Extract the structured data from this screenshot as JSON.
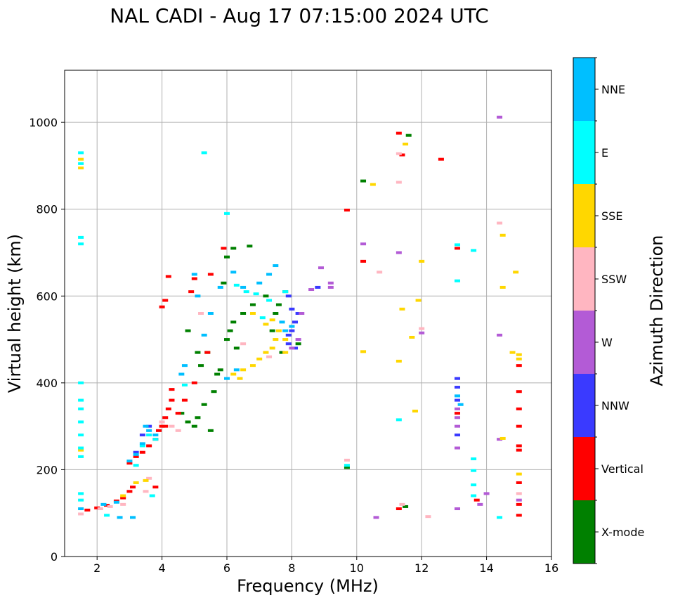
{
  "chart_data": {
    "type": "scatter",
    "title": "NAL CADI - Aug 17 07:15:00 2024 UTC",
    "xlabel": "Frequency (MHz)",
    "ylabel": "Virtual height (km)",
    "xlim": [
      1,
      16
    ],
    "ylim": [
      0,
      1120
    ],
    "x_ticks": [
      2,
      4,
      6,
      8,
      10,
      12,
      14,
      16
    ],
    "y_ticks": [
      0,
      200,
      400,
      600,
      800,
      1000
    ],
    "grid": true,
    "colorbar": {
      "label": "Azimuth Direction",
      "categories": [
        {
          "name": "X-mode",
          "color": "#008000"
        },
        {
          "name": "Vertical",
          "color": "#ff0000"
        },
        {
          "name": "NNW",
          "color": "#3a3aff"
        },
        {
          "name": "W",
          "color": "#b35bd6"
        },
        {
          "name": "SSW",
          "color": "#ffb6c1"
        },
        {
          "name": "SSE",
          "color": "#ffd700"
        },
        {
          "name": "E",
          "color": "#00ffff"
        },
        {
          "name": "NNE",
          "color": "#00bfff"
        }
      ]
    },
    "series": [
      {
        "name": "X-mode",
        "points": [
          [
            4.6,
            330
          ],
          [
            4.8,
            310
          ],
          [
            5.0,
            300
          ],
          [
            5.1,
            320
          ],
          [
            5.3,
            350
          ],
          [
            5.5,
            290
          ],
          [
            5.6,
            380
          ],
          [
            5.2,
            440
          ],
          [
            5.4,
            470
          ],
          [
            5.7,
            420
          ],
          [
            5.8,
            430
          ],
          [
            6.0,
            500
          ],
          [
            6.1,
            520
          ],
          [
            6.3,
            480
          ],
          [
            6.2,
            540
          ],
          [
            6.5,
            560
          ],
          [
            6.8,
            580
          ],
          [
            7.2,
            600
          ],
          [
            7.5,
            560
          ],
          [
            7.6,
            580
          ],
          [
            7.8,
            610
          ],
          [
            7.7,
            470
          ],
          [
            7.4,
            520
          ],
          [
            8.2,
            490
          ],
          [
            5.9,
            630
          ],
          [
            6.0,
            690
          ],
          [
            6.2,
            710
          ],
          [
            6.7,
            715
          ],
          [
            4.8,
            520
          ],
          [
            5.1,
            470
          ],
          [
            11.5,
            115
          ],
          [
            11.6,
            970
          ],
          [
            10.2,
            865
          ],
          [
            9.7,
            205
          ]
        ]
      },
      {
        "name": "Vertical",
        "points": [
          [
            1.7,
            107
          ],
          [
            2.0,
            112
          ],
          [
            2.3,
            118
          ],
          [
            2.6,
            128
          ],
          [
            2.8,
            135
          ],
          [
            3.0,
            150
          ],
          [
            3.1,
            160
          ],
          [
            3.0,
            215
          ],
          [
            3.2,
            230
          ],
          [
            3.4,
            240
          ],
          [
            3.6,
            255
          ],
          [
            3.8,
            270
          ],
          [
            3.9,
            290
          ],
          [
            4.0,
            300
          ],
          [
            4.1,
            320
          ],
          [
            4.2,
            340
          ],
          [
            4.3,
            360
          ],
          [
            4.3,
            385
          ],
          [
            4.1,
            300
          ],
          [
            4.5,
            330
          ],
          [
            4.7,
            360
          ],
          [
            5.0,
            400
          ],
          [
            5.4,
            470
          ],
          [
            4.0,
            575
          ],
          [
            4.1,
            590
          ],
          [
            4.2,
            645
          ],
          [
            4.9,
            610
          ],
          [
            5.0,
            640
          ],
          [
            5.5,
            650
          ],
          [
            5.9,
            710
          ],
          [
            9.7,
            798
          ],
          [
            10.2,
            680
          ],
          [
            11.3,
            110
          ],
          [
            11.4,
            925
          ],
          [
            11.3,
            975
          ],
          [
            12.6,
            915
          ],
          [
            13.1,
            710
          ],
          [
            13.1,
            330
          ],
          [
            13.7,
            130
          ],
          [
            15.0,
            300
          ],
          [
            15.0,
            340
          ],
          [
            15.0,
            380
          ],
          [
            15.0,
            245
          ],
          [
            15.0,
            255
          ],
          [
            15.0,
            120
          ],
          [
            15.0,
            95
          ],
          [
            15.0,
            170
          ],
          [
            15.0,
            440
          ],
          [
            3.8,
            160
          ]
        ]
      },
      {
        "name": "NNW",
        "points": [
          [
            7.9,
            490
          ],
          [
            7.9,
            510
          ],
          [
            8.0,
            520
          ],
          [
            8.1,
            540
          ],
          [
            8.2,
            560
          ],
          [
            8.0,
            570
          ],
          [
            8.1,
            480
          ],
          [
            7.9,
            600
          ],
          [
            8.8,
            620
          ],
          [
            13.1,
            360
          ],
          [
            13.1,
            390
          ],
          [
            13.1,
            410
          ],
          [
            13.1,
            280
          ],
          [
            3.4,
            280
          ],
          [
            3.2,
            240
          ],
          [
            3.6,
            300
          ]
        ]
      },
      {
        "name": "W",
        "points": [
          [
            8.0,
            480
          ],
          [
            8.2,
            500
          ],
          [
            8.3,
            560
          ],
          [
            8.6,
            615
          ],
          [
            8.9,
            665
          ],
          [
            9.2,
            620
          ],
          [
            9.2,
            630
          ],
          [
            10.2,
            720
          ],
          [
            10.6,
            90
          ],
          [
            11.3,
            700
          ],
          [
            12.0,
            515
          ],
          [
            13.1,
            300
          ],
          [
            13.1,
            320
          ],
          [
            13.1,
            340
          ],
          [
            13.1,
            250
          ],
          [
            13.1,
            110
          ],
          [
            13.8,
            120
          ],
          [
            14.0,
            145
          ],
          [
            14.4,
            270
          ],
          [
            14.4,
            510
          ],
          [
            14.4,
            1012
          ],
          [
            15.0,
            130
          ]
        ]
      },
      {
        "name": "SSW",
        "points": [
          [
            1.5,
            98
          ],
          [
            2.1,
            110
          ],
          [
            2.4,
            115
          ],
          [
            2.8,
            120
          ],
          [
            3.5,
            150
          ],
          [
            3.6,
            180
          ],
          [
            4.3,
            300
          ],
          [
            4.0,
            310
          ],
          [
            4.5,
            290
          ],
          [
            5.2,
            560
          ],
          [
            6.5,
            490
          ],
          [
            7.3,
            460
          ],
          [
            11.3,
            862
          ],
          [
            11.3,
            928
          ],
          [
            12.0,
            525
          ],
          [
            12.2,
            92
          ],
          [
            9.7,
            222
          ],
          [
            10.7,
            655
          ],
          [
            11.4,
            120
          ],
          [
            14.4,
            768
          ],
          [
            15.0,
            145
          ]
        ]
      },
      {
        "name": "SSE",
        "points": [
          [
            1.5,
            895
          ],
          [
            1.5,
            915
          ],
          [
            1.5,
            245
          ],
          [
            2.8,
            140
          ],
          [
            3.2,
            170
          ],
          [
            3.5,
            175
          ],
          [
            6.2,
            420
          ],
          [
            6.4,
            410
          ],
          [
            6.5,
            430
          ],
          [
            6.8,
            440
          ],
          [
            7.0,
            455
          ],
          [
            7.2,
            470
          ],
          [
            7.4,
            480
          ],
          [
            7.5,
            500
          ],
          [
            7.6,
            520
          ],
          [
            7.4,
            545
          ],
          [
            7.2,
            535
          ],
          [
            6.8,
            560
          ],
          [
            7.8,
            500
          ],
          [
            7.8,
            470
          ],
          [
            10.2,
            472
          ],
          [
            10.5,
            857
          ],
          [
            11.4,
            570
          ],
          [
            11.5,
            950
          ],
          [
            11.7,
            505
          ],
          [
            11.8,
            335
          ],
          [
            11.9,
            590
          ],
          [
            12.0,
            680
          ],
          [
            11.3,
            450
          ],
          [
            14.5,
            272
          ],
          [
            14.5,
            620
          ],
          [
            14.5,
            740
          ],
          [
            14.8,
            470
          ],
          [
            14.9,
            655
          ],
          [
            15.0,
            190
          ],
          [
            15.0,
            455
          ],
          [
            15.0,
            465
          ]
        ]
      },
      {
        "name": "E",
        "points": [
          [
            1.5,
            230
          ],
          [
            1.5,
            250
          ],
          [
            1.5,
            280
          ],
          [
            1.5,
            310
          ],
          [
            1.5,
            340
          ],
          [
            1.5,
            360
          ],
          [
            1.5,
            400
          ],
          [
            1.5,
            130
          ],
          [
            1.5,
            145
          ],
          [
            1.5,
            720
          ],
          [
            1.5,
            735
          ],
          [
            1.5,
            905
          ],
          [
            1.5,
            930
          ],
          [
            2.3,
            95
          ],
          [
            3.2,
            210
          ],
          [
            3.4,
            255
          ],
          [
            3.6,
            280
          ],
          [
            3.8,
            270
          ],
          [
            3.7,
            140
          ],
          [
            4.7,
            395
          ],
          [
            5.3,
            930
          ],
          [
            6.0,
            790
          ],
          [
            6.3,
            625
          ],
          [
            6.6,
            610
          ],
          [
            6.9,
            605
          ],
          [
            7.1,
            550
          ],
          [
            7.3,
            590
          ],
          [
            7.8,
            610
          ],
          [
            9.7,
            210
          ],
          [
            11.3,
            315
          ],
          [
            13.1,
            635
          ],
          [
            13.1,
            718
          ],
          [
            13.6,
            225
          ],
          [
            13.6,
            198
          ],
          [
            13.6,
            165
          ],
          [
            13.6,
            140
          ],
          [
            13.6,
            705
          ],
          [
            14.4,
            90
          ]
        ]
      },
      {
        "name": "NNE",
        "points": [
          [
            1.5,
            110
          ],
          [
            2.2,
            120
          ],
          [
            2.6,
            125
          ],
          [
            3.0,
            220
          ],
          [
            3.2,
            235
          ],
          [
            3.4,
            260
          ],
          [
            3.6,
            290
          ],
          [
            3.8,
            280
          ],
          [
            3.5,
            300
          ],
          [
            4.6,
            420
          ],
          [
            4.7,
            440
          ],
          [
            5.0,
            650
          ],
          [
            5.1,
            600
          ],
          [
            5.3,
            510
          ],
          [
            5.5,
            560
          ],
          [
            5.8,
            620
          ],
          [
            6.2,
            655
          ],
          [
            6.5,
            620
          ],
          [
            6.0,
            410
          ],
          [
            6.3,
            430
          ],
          [
            7.0,
            630
          ],
          [
            7.3,
            650
          ],
          [
            7.5,
            670
          ],
          [
            7.7,
            540
          ],
          [
            7.8,
            520
          ],
          [
            8.0,
            530
          ],
          [
            13.1,
            370
          ],
          [
            13.2,
            350
          ],
          [
            2.7,
            90
          ],
          [
            3.1,
            90
          ]
        ]
      }
    ]
  }
}
